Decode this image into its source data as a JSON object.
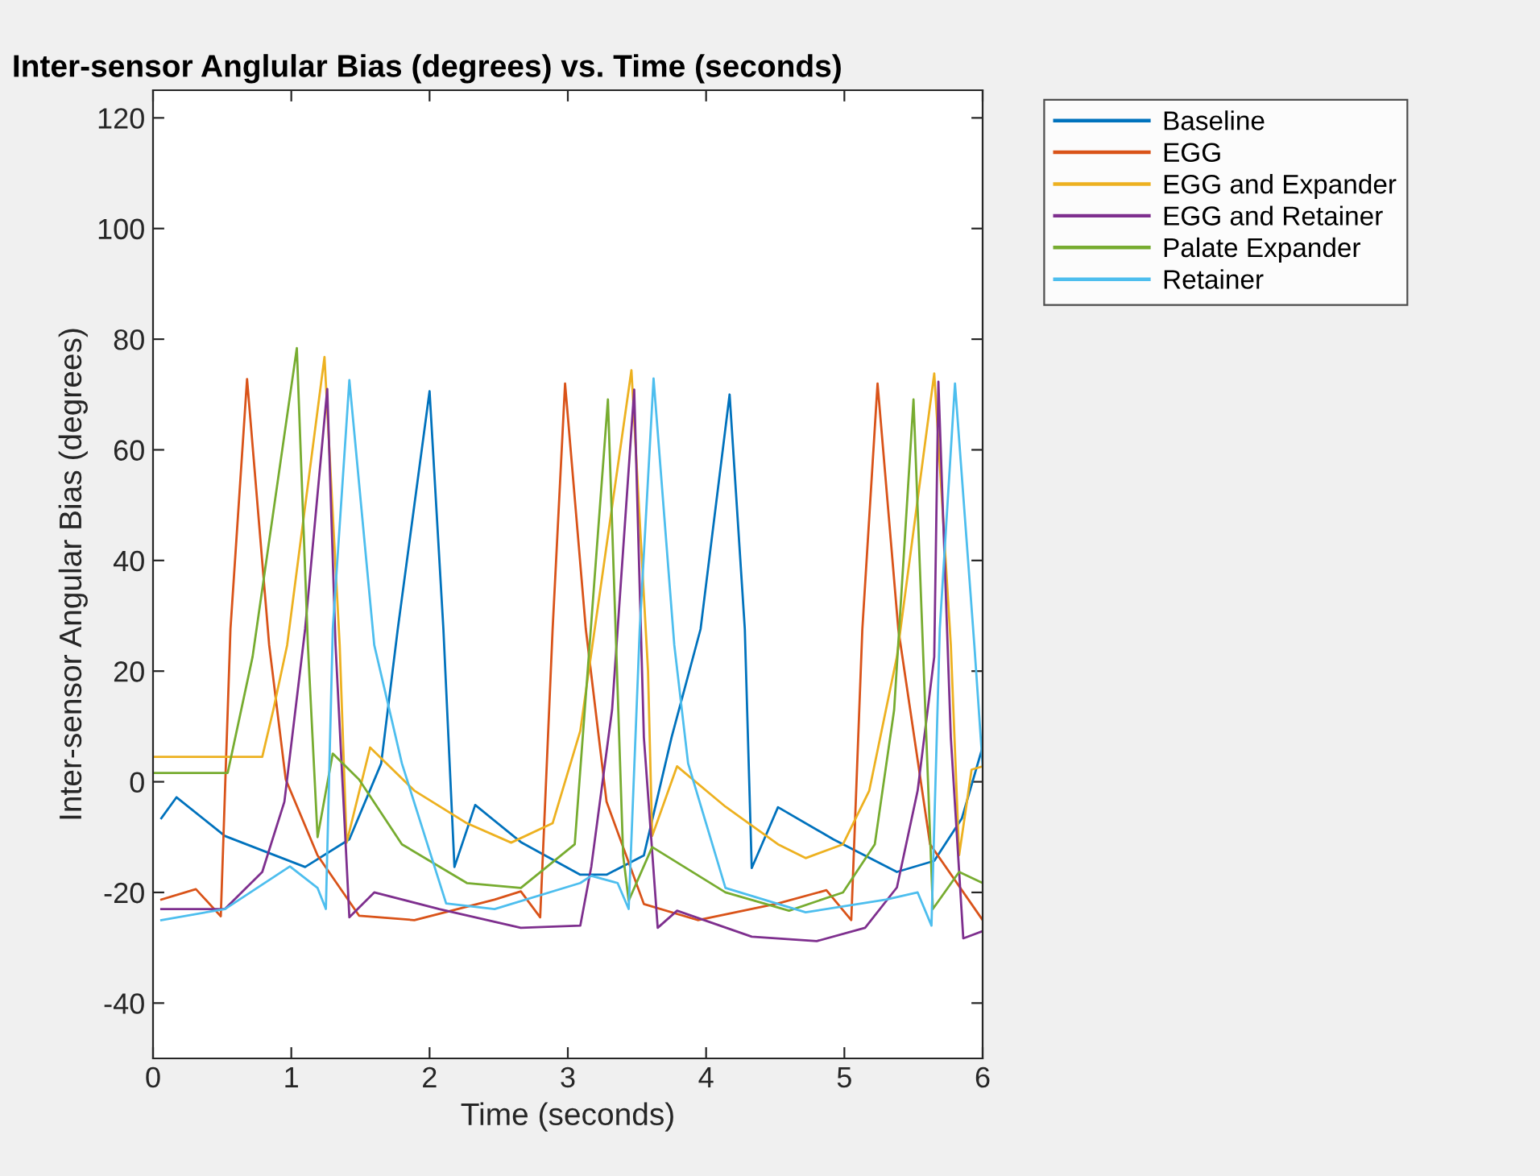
{
  "chart_data": {
    "type": "line",
    "title": "Inter-sensor Anglular Bias (degrees) vs. Time (seconds)",
    "xlabel": "Time (seconds)",
    "ylabel": "Inter-sensor Angular Bias (degrees)",
    "xlim": [
      0,
      6
    ],
    "xticks": [
      0,
      1,
      2,
      3,
      4,
      5,
      6
    ],
    "ylim": [
      -50,
      125
    ],
    "yticks": [
      -40,
      -20,
      0,
      20,
      40,
      60,
      80,
      100,
      120
    ],
    "grid": false,
    "legend": "top right",
    "marker": "none",
    "line_style": "solid",
    "series": [
      {
        "name": "Baseline",
        "color": "#0072bd",
        "x": [
          0.06,
          0.17,
          0.52,
          1.1,
          1.42,
          1.65,
          1.77,
          2.0,
          2.1,
          2.18,
          2.33,
          2.66,
          3.09,
          3.28,
          3.55,
          3.75,
          3.96,
          4.17,
          4.28,
          4.33,
          4.52,
          4.92,
          5.38,
          5.65,
          5.85,
          6.0
        ],
        "values": [
          -6.6,
          -2.8,
          -9.8,
          -15.4,
          -10.4,
          3.3,
          27.6,
          70.6,
          27.6,
          -15.4,
          -4.2,
          -10.9,
          -16.8,
          -16.8,
          -13.3,
          8,
          27.6,
          70,
          27.6,
          -15.6,
          -4.6,
          -10.4,
          -16.3,
          -14.3,
          -6.6,
          6.3
        ]
      },
      {
        "name": "EGG",
        "color": "#d95319",
        "x": [
          0.06,
          0.31,
          0.49,
          0.56,
          0.68,
          0.84,
          0.96,
          1.19,
          1.49,
          1.89,
          2.47,
          2.66,
          2.8,
          2.89,
          2.98,
          3.13,
          3.28,
          3.55,
          3.94,
          4.52,
          4.87,
          5.05,
          5.13,
          5.24,
          5.39,
          5.62,
          6.0
        ],
        "values": [
          -21.3,
          -19.4,
          -24.3,
          27.6,
          72.8,
          24.7,
          0.4,
          -13.3,
          -24.2,
          -25,
          -21.3,
          -19.8,
          -24.5,
          27.6,
          72,
          27.6,
          -3.6,
          -22.1,
          -25,
          -22,
          -19.6,
          -25,
          27.6,
          72,
          27.6,
          -11.3,
          -25
        ]
      },
      {
        "name": "EGG and Expander",
        "color": "#edb120",
        "x": [
          0.0,
          0.79,
          0.87,
          0.97,
          1.24,
          1.35,
          1.4,
          1.57,
          1.89,
          2.27,
          2.59,
          2.89,
          3.09,
          3.46,
          3.58,
          3.61,
          3.79,
          4.14,
          4.52,
          4.72,
          4.99,
          5.18,
          5.38,
          5.65,
          5.77,
          5.83,
          5.92,
          6.0
        ],
        "values": [
          4.5,
          4.5,
          13,
          24.7,
          76.8,
          24.7,
          -11,
          6.2,
          -1.6,
          -7.5,
          -11,
          -7.5,
          9.2,
          74.4,
          20,
          -9.8,
          2.8,
          -4.5,
          -11.3,
          -13.8,
          -11.3,
          -1.6,
          22.6,
          73.8,
          24.7,
          -13.3,
          2.2,
          2.8
        ]
      },
      {
        "name": "EGG and Retainer",
        "color": "#7e2f8e",
        "x": [
          0.06,
          0.52,
          0.79,
          0.95,
          1.1,
          1.26,
          1.32,
          1.42,
          1.6,
          2.07,
          2.66,
          3.09,
          3.17,
          3.32,
          3.48,
          3.55,
          3.65,
          3.79,
          4.33,
          4.8,
          5.15,
          5.38,
          5.53,
          5.65,
          5.68,
          5.77,
          5.86,
          6.0
        ],
        "values": [
          -23,
          -23,
          -16.3,
          -3.6,
          27.6,
          71,
          24.7,
          -24.5,
          -20,
          -23,
          -26.4,
          -26,
          -15.3,
          13,
          70.9,
          8,
          -26.4,
          -23.3,
          -28,
          -28.8,
          -26.4,
          -19.1,
          -1.6,
          22.6,
          72.3,
          8,
          -28.3,
          -27
        ]
      },
      {
        "name": "Palate Expander",
        "color": "#77ac30",
        "x": [
          0.0,
          0.54,
          0.72,
          1.04,
          1.12,
          1.19,
          1.3,
          1.49,
          1.8,
          2.27,
          2.66,
          3.05,
          3.29,
          3.4,
          3.44,
          3.61,
          4.14,
          4.6,
          4.99,
          5.22,
          5.36,
          5.5,
          5.64,
          5.83,
          6.0
        ],
        "values": [
          1.6,
          1.6,
          22.6,
          78.4,
          24.7,
          -10,
          5.1,
          0.4,
          -11.3,
          -18.3,
          -19.2,
          -11.3,
          69.1,
          -13.3,
          -21.5,
          -11.8,
          -20,
          -23.3,
          -20,
          -11.3,
          13,
          69.1,
          -23,
          -16.3,
          -18.3
        ]
      },
      {
        "name": "Retainer",
        "color": "#4dbeee",
        "x": [
          0.06,
          0.52,
          0.99,
          1.19,
          1.25,
          1.3,
          1.42,
          1.6,
          1.8,
          2.12,
          2.47,
          3.09,
          3.17,
          3.36,
          3.44,
          3.52,
          3.62,
          3.77,
          3.87,
          4.14,
          4.72,
          5.3,
          5.53,
          5.63,
          5.69,
          5.8,
          5.94,
          6.0
        ],
        "values": [
          -25,
          -23,
          -15.3,
          -19.2,
          -23,
          27.6,
          72.6,
          24.7,
          3.3,
          -22,
          -23,
          -18.3,
          -17,
          -18.3,
          -23,
          27.6,
          72.9,
          24.7,
          3.3,
          -19.2,
          -23.6,
          -21.3,
          -20,
          -26,
          27.6,
          72,
          24.7,
          3
        ]
      }
    ]
  }
}
